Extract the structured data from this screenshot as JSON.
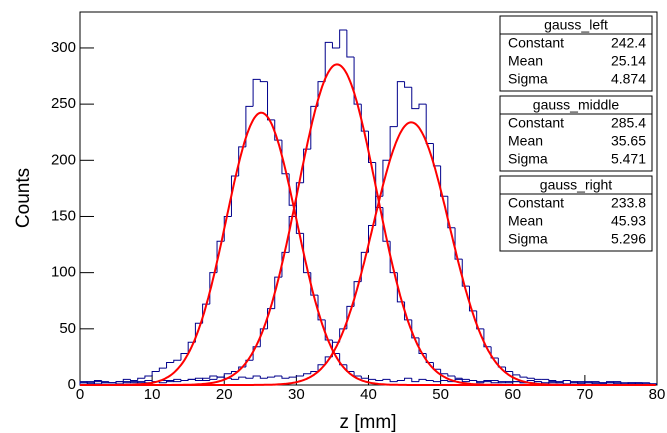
{
  "chart_data": {
    "type": "histogram",
    "x_label": "z [mm]",
    "y_label": "Counts",
    "xlim": [
      0,
      80
    ],
    "xticks": [
      0,
      10,
      20,
      30,
      40,
      50,
      60,
      70,
      80
    ],
    "ylim": [
      0,
      332
    ],
    "yticks": [
      0,
      50,
      100,
      150,
      200,
      250,
      300
    ],
    "bins": [
      0,
      1,
      2,
      3,
      4,
      5,
      6,
      7,
      8,
      9,
      10,
      11,
      12,
      13,
      14,
      15,
      16,
      17,
      18,
      19,
      20,
      21,
      22,
      23,
      24,
      25,
      26,
      27,
      28,
      29,
      30,
      31,
      32,
      33,
      34,
      35,
      36,
      37,
      38,
      39,
      40,
      41,
      42,
      43,
      44,
      45,
      46,
      47,
      48,
      49,
      50,
      51,
      52,
      53,
      54,
      55,
      56,
      57,
      58,
      59,
      60,
      61,
      62,
      63,
      64,
      65,
      66,
      67,
      68,
      69,
      70,
      71,
      72,
      73,
      74,
      75,
      76,
      77,
      78,
      79,
      80
    ],
    "stat_labels": [
      "Constant",
      "Mean",
      "Sigma"
    ],
    "fit_color": "#ff0000",
    "series": [
      {
        "name": "gauss_left",
        "color": "#00008b",
        "fit": [
          242.4,
          25.14,
          4.874
        ],
        "values": [
          3,
          2,
          4,
          3,
          2,
          3,
          5,
          4,
          6,
          8,
          12,
          15,
          20,
          22,
          28,
          38,
          55,
          72,
          100,
          128,
          150,
          186,
          212,
          248,
          272,
          270,
          236,
          218,
          188,
          160,
          135,
          100,
          80,
          58,
          40,
          28,
          18,
          12,
          8,
          6,
          5,
          4,
          5,
          3,
          4,
          6,
          3,
          5,
          4,
          3,
          4,
          3,
          5,
          3,
          4,
          2,
          3,
          4,
          2,
          3,
          3,
          2,
          4,
          3,
          2,
          3,
          2,
          4,
          2,
          3,
          2,
          3,
          2,
          2,
          3,
          2,
          1,
          2,
          2,
          1
        ]
      },
      {
        "name": "gauss_middle",
        "color": "#00008b",
        "fit": [
          285.4,
          35.65,
          5.471
        ],
        "values": [
          2,
          1,
          3,
          2,
          2,
          1,
          3,
          2,
          3,
          2,
          3,
          2,
          4,
          3,
          4,
          5,
          4,
          6,
          8,
          7,
          10,
          12,
          16,
          22,
          34,
          50,
          68,
          96,
          118,
          150,
          180,
          210,
          248,
          270,
          305,
          300,
          316,
          292,
          250,
          226,
          198,
          158,
          128,
          100,
          74,
          58,
          42,
          28,
          20,
          14,
          10,
          8,
          6,
          5,
          4,
          3,
          4,
          2,
          3,
          2,
          3,
          2,
          2,
          3,
          1,
          2,
          2,
          1,
          2,
          1,
          2,
          1,
          1,
          2,
          1,
          1,
          2,
          1,
          1,
          1
        ]
      },
      {
        "name": "gauss_right",
        "color": "#00008b",
        "fit": [
          233.8,
          45.93,
          5.296
        ],
        "values": [
          2,
          3,
          1,
          2,
          2,
          3,
          2,
          3,
          2,
          4,
          3,
          4,
          3,
          5,
          4,
          5,
          6,
          4,
          5,
          7,
          6,
          5,
          7,
          6,
          8,
          6,
          7,
          8,
          6,
          7,
          8,
          10,
          12,
          18,
          25,
          38,
          50,
          70,
          92,
          118,
          142,
          168,
          200,
          230,
          270,
          265,
          246,
          250,
          215,
          195,
          168,
          140,
          112,
          88,
          66,
          50,
          34,
          24,
          16,
          12,
          9,
          7,
          6,
          5,
          5,
          4,
          3,
          4,
          3,
          2,
          3,
          2,
          2,
          3,
          2,
          1,
          2,
          2,
          1,
          1
        ]
      }
    ]
  }
}
